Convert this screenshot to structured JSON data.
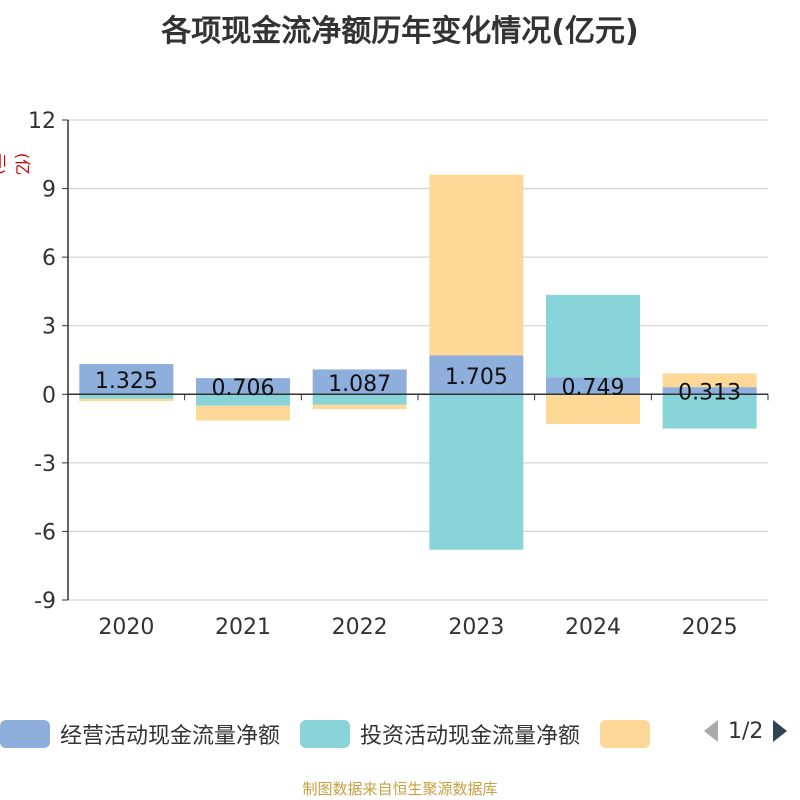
{
  "title": "各项现金流净额历年变化情况(亿元)",
  "unit": "(亿元)",
  "source": "制图数据来自恒生聚源数据库",
  "legend": {
    "items": [
      {
        "label": "经营活动现金流量净额",
        "color": "#8eaedc"
      },
      {
        "label": "投资活动现金流量净额",
        "color": "#88d4d8"
      },
      {
        "label": "",
        "color": "#fdd897"
      }
    ],
    "page": "1/2"
  },
  "chart_data": {
    "type": "bar",
    "stacked": true,
    "categories": [
      "2020",
      "2021",
      "2022",
      "2023",
      "2024",
      "2025"
    ],
    "ylim": [
      -9,
      12
    ],
    "yticks": [
      12,
      9,
      6,
      3,
      0,
      -3,
      -6,
      -9
    ],
    "series": [
      {
        "name": "经营活动现金流量净额",
        "color": "#8eaedc",
        "values": [
          1.325,
          0.706,
          1.087,
          1.705,
          0.749,
          0.313
        ],
        "labels": [
          "1.325",
          "0.706",
          "1.087",
          "1.705",
          "0.749",
          "0.313"
        ]
      },
      {
        "name": "投资活动现金流量净额",
        "color": "#88d4d8",
        "values": [
          -0.2,
          -0.5,
          -0.45,
          -6.8,
          3.6,
          -1.5
        ]
      },
      {
        "name": "",
        "color": "#fdd897",
        "values": [
          -0.1,
          -0.65,
          -0.2,
          7.9,
          -1.3,
          0.6
        ]
      }
    ]
  }
}
